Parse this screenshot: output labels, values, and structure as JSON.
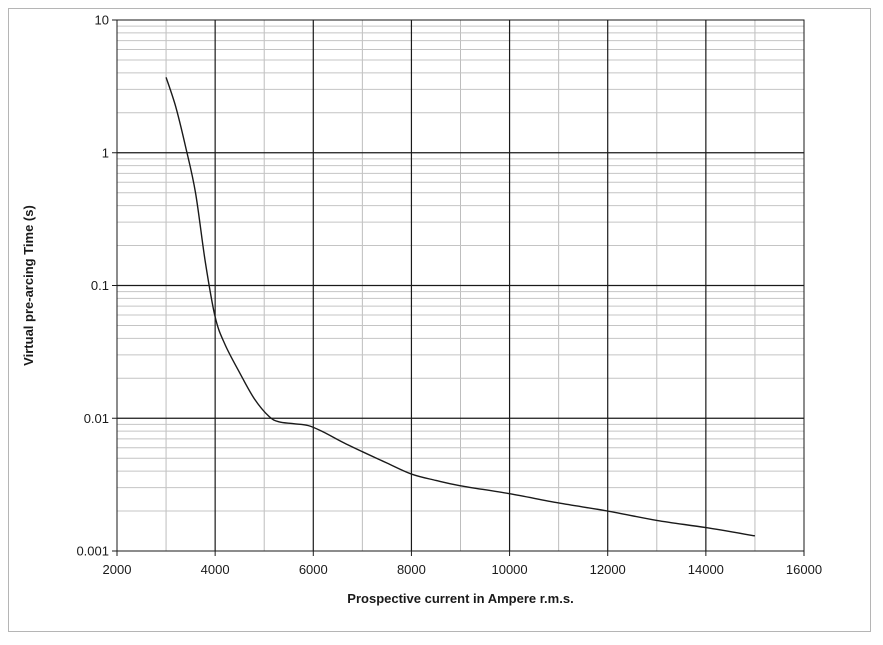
{
  "chart_data": {
    "type": "line",
    "title": "",
    "xlabel": "Prospective current in Ampere r.m.s.",
    "ylabel": "Virtual pre-arcing Time (s)",
    "x_scale": "linear",
    "y_scale": "log",
    "xlim": [
      2000,
      16000
    ],
    "ylim": [
      0.001,
      10
    ],
    "x_ticks": [
      "2000",
      "4000",
      "6000",
      "8000",
      "10000",
      "12000",
      "14000",
      "16000"
    ],
    "y_ticks": [
      "0.001",
      "0.01",
      "0.1",
      "1",
      "10"
    ],
    "grid": true,
    "legend": "none",
    "series": [
      {
        "color": "#1a1a1a",
        "points": [
          [
            3000,
            3.7
          ],
          [
            3200,
            2.2
          ],
          [
            3400,
            1.1
          ],
          [
            3600,
            0.5
          ],
          [
            3800,
            0.15
          ],
          [
            4000,
            0.058
          ],
          [
            4200,
            0.036
          ],
          [
            4500,
            0.022
          ],
          [
            4800,
            0.014
          ],
          [
            5100,
            0.0103
          ],
          [
            5300,
            0.0094
          ],
          [
            5600,
            0.0091
          ],
          [
            5900,
            0.0088
          ],
          [
            6200,
            0.0079
          ],
          [
            6600,
            0.0066
          ],
          [
            7000,
            0.0056
          ],
          [
            7500,
            0.0046
          ],
          [
            8000,
            0.0038
          ],
          [
            8500,
            0.0034
          ],
          [
            9000,
            0.0031
          ],
          [
            10000,
            0.0027
          ],
          [
            11000,
            0.0023
          ],
          [
            12000,
            0.002
          ],
          [
            13000,
            0.0017
          ],
          [
            14000,
            0.0015
          ],
          [
            15000,
            0.0013
          ]
        ]
      }
    ]
  }
}
